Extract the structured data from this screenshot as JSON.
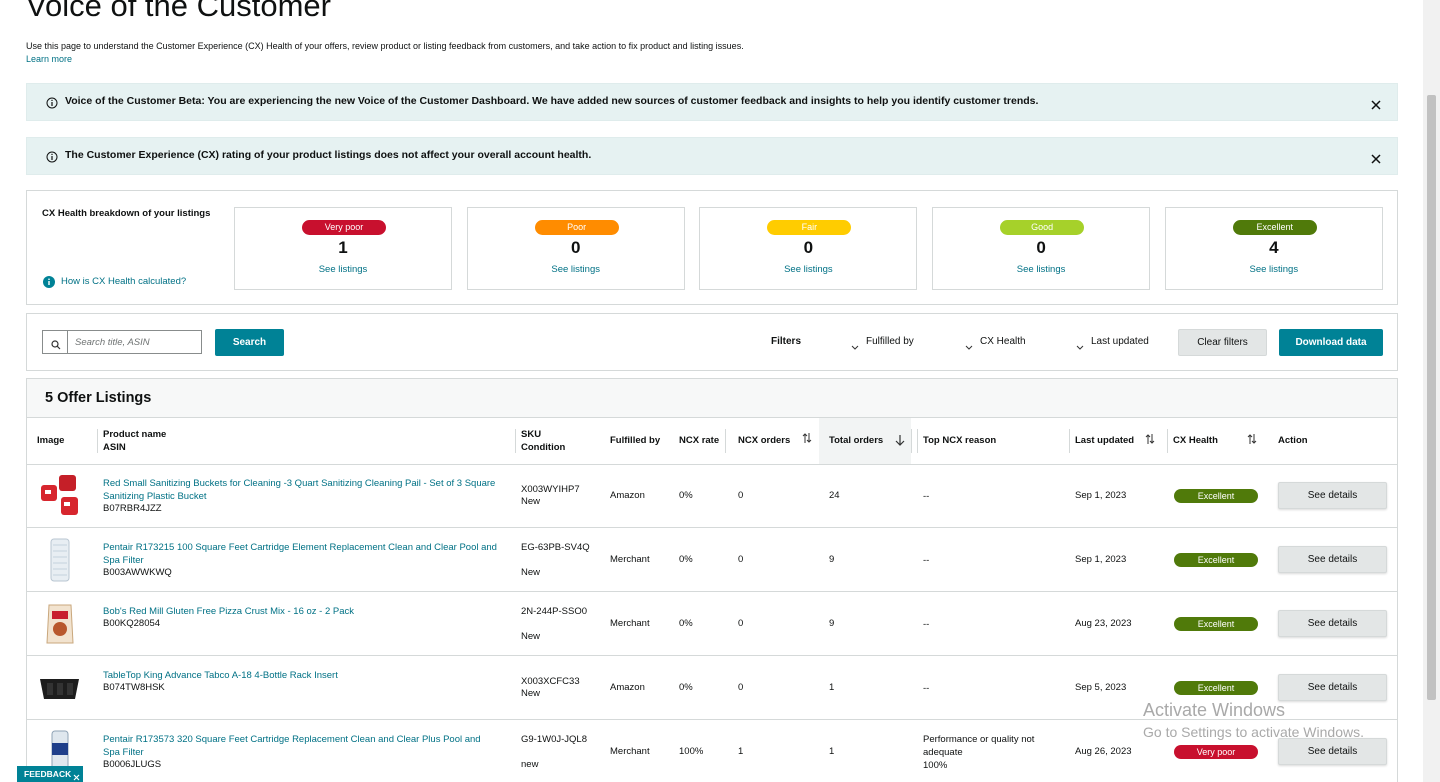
{
  "header": {
    "title": "Voice of the Customer",
    "description": "Use this page to understand the Customer Experience (CX) Health of your offers, review product or listing feedback from customers, and take action to fix product and listing issues.",
    "learn_more": "Learn more"
  },
  "alerts": [
    "Voice of the Customer Beta: You are experiencing the new Voice of the Customer Dashboard. We have added new sources of customer feedback and insights to help you identify customer trends.",
    "The Customer Experience (CX) rating of your product listings does not affect your overall account health."
  ],
  "cx_health": {
    "title": "CX Health breakdown of your listings",
    "help": "How is CX Health calculated?",
    "cards": [
      {
        "label": "Very poor",
        "count": 1,
        "link": "See listings",
        "color": "#c8102e",
        "text_color": "#ffffff"
      },
      {
        "label": "Poor",
        "count": 0,
        "link": "See listings",
        "color": "#ff8c00",
        "text_color": "#ffffff"
      },
      {
        "label": "Fair",
        "count": 0,
        "link": "See listings",
        "color": "#ffcc00",
        "text_color": "#ffffff"
      },
      {
        "label": "Good",
        "count": 0,
        "link": "See listings",
        "color": "#a6d12a",
        "text_color": "#ffffff"
      },
      {
        "label": "Excellent",
        "count": 4,
        "link": "See listings",
        "color": "#507a0a",
        "text_color": "#ffffff"
      }
    ]
  },
  "toolbar": {
    "search_placeholder": "Search title, ASIN",
    "search_button": "Search",
    "filters_label": "Filters",
    "filters": [
      "Fulfilled by",
      "CX Health",
      "Last updated"
    ],
    "clear": "Clear filters",
    "download": "Download data"
  },
  "table": {
    "title": "5 Offer Listings",
    "columns": [
      [
        "Image"
      ],
      [
        "Product name",
        "ASIN"
      ],
      [
        "SKU",
        "Condition"
      ],
      [
        "Fulfilled by"
      ],
      [
        "NCX rate"
      ],
      [
        "NCX orders"
      ],
      [
        "Total orders"
      ],
      [
        "Top NCX reason"
      ],
      [
        "Last updated"
      ],
      [
        "CX Health"
      ],
      [
        "Action"
      ]
    ],
    "rows": [
      {
        "product": "Red Small Sanitizing Buckets for Cleaning -3 Quart Sanitizing Cleaning Pail - Set of 3 Square Sanitizing Plastic Bucket",
        "asin": "B07RBR4JZZ",
        "sku": "X003WYIHP7",
        "condition": "New",
        "fulfilled_by": "Amazon",
        "ncx_rate": "0%",
        "ncx_orders": 0,
        "total_orders": 24,
        "top_ncx_reason": [
          "--"
        ],
        "last_updated": "Sep 1, 2023",
        "cx_health": "Excellent",
        "action": "See details"
      },
      {
        "product": "Pentair R173215 100 Square Feet Cartridge Element Replacement Clean and Clear Pool and Spa Filter",
        "asin": "B003AWWKWQ",
        "sku": "EG-63PB-SV4Q",
        "condition": "New",
        "fulfilled_by": "Merchant",
        "ncx_rate": "0%",
        "ncx_orders": 0,
        "total_orders": 9,
        "top_ncx_reason": [
          "--"
        ],
        "last_updated": "Sep 1, 2023",
        "cx_health": "Excellent",
        "action": "See details"
      },
      {
        "product": "Bob's Red Mill Gluten Free Pizza Crust Mix - 16 oz - 2 Pack",
        "asin": "B00KQ28054",
        "sku": "2N-244P-SSO0",
        "condition": "New",
        "fulfilled_by": "Merchant",
        "ncx_rate": "0%",
        "ncx_orders": 0,
        "total_orders": 9,
        "top_ncx_reason": [
          "--"
        ],
        "last_updated": "Aug 23, 2023",
        "cx_health": "Excellent",
        "action": "See details"
      },
      {
        "product": "TableTop King Advance Tabco A-18 4-Bottle Rack Insert",
        "asin": "B074TW8HSK",
        "sku": "X003XCFC33",
        "condition": "New",
        "fulfilled_by": "Amazon",
        "ncx_rate": "0%",
        "ncx_orders": 0,
        "total_orders": 1,
        "top_ncx_reason": [
          "--"
        ],
        "last_updated": "Sep 5, 2023",
        "cx_health": "Excellent",
        "action": "See details"
      },
      {
        "product": "Pentair R173573 320 Square Feet Cartridge Replacement Clean and Clear Plus Pool and Spa Filter",
        "asin": "B0006JLUGS",
        "sku": "G9-1W0J-JQL8",
        "condition": "new",
        "fulfilled_by": "Merchant",
        "ncx_rate": "100%",
        "ncx_orders": 1,
        "total_orders": 1,
        "top_ncx_reason": [
          "Performance or quality not adequate",
          "100%"
        ],
        "last_updated": "Aug 26, 2023",
        "cx_health": "Very poor",
        "action": "See details"
      }
    ]
  },
  "overlay": {
    "activate_title": "Activate Windows",
    "activate_subtitle": "Go to Settings to activate Windows."
  },
  "feedback": "FEEDBACK"
}
